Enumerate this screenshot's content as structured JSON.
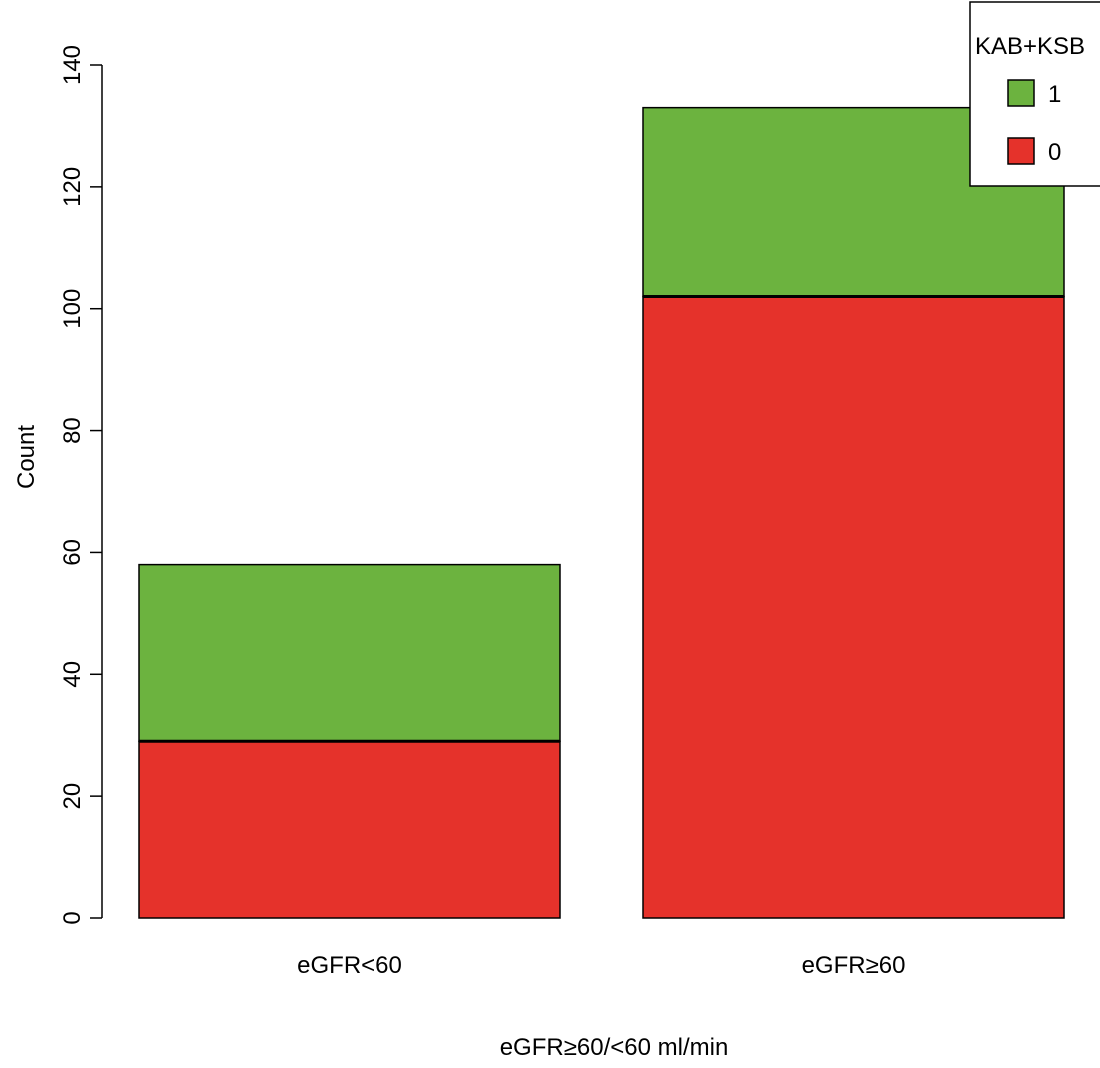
{
  "chart_data": {
    "type": "bar",
    "stacked": true,
    "title": "",
    "xlabel": "eGFR≥60/<60 ml/min",
    "ylabel": "Count",
    "categories": [
      "eGFR<60",
      "eGFR≥60"
    ],
    "series": [
      {
        "name": "0",
        "values": [
          29,
          102
        ],
        "color": "#e5322b"
      },
      {
        "name": "1",
        "values": [
          29,
          31
        ],
        "color": "#6cb33f"
      }
    ],
    "ylim": [
      0,
      140
    ],
    "yticks": [
      0,
      20,
      40,
      60,
      80,
      100,
      120,
      140
    ],
    "grid": false,
    "legend": {
      "title": "KAB+KSB",
      "entries": [
        "1",
        "0"
      ],
      "placement": "top-right"
    }
  }
}
